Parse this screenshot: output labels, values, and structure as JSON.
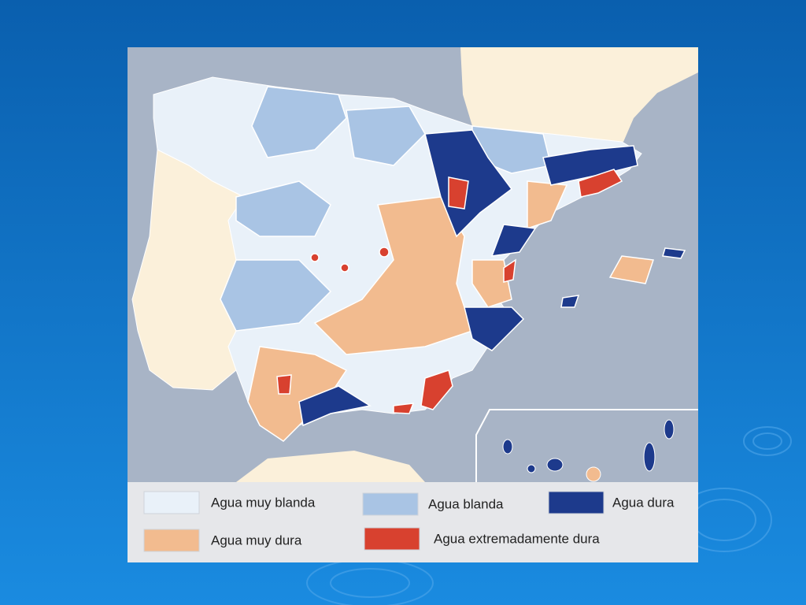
{
  "legend": {
    "items": [
      {
        "label": "Agua muy blanda",
        "color": "#e9f1f9"
      },
      {
        "label": "Agua blanda",
        "color": "#a9c4e4"
      },
      {
        "label": "Agua dura",
        "color": "#1d3a8c"
      },
      {
        "label": "Agua muy dura",
        "color": "#f2bb8f"
      },
      {
        "label": "Agua extremadamente dura",
        "color": "#d8412f"
      }
    ]
  }
}
